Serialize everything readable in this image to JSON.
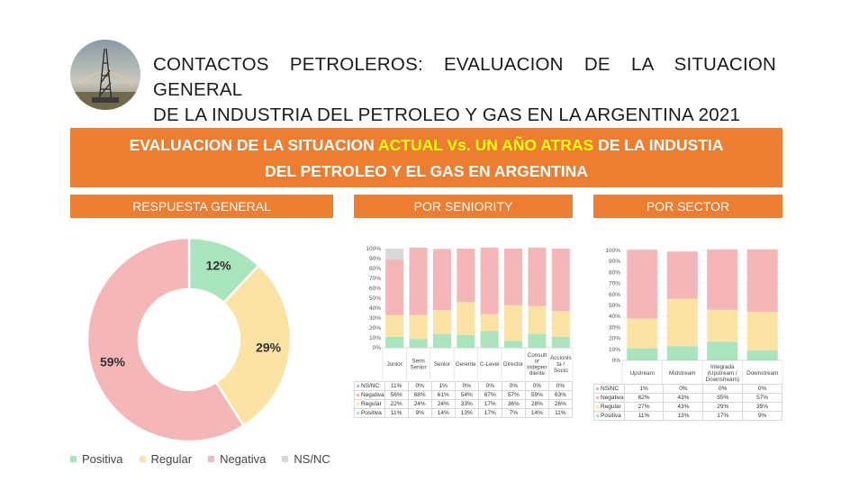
{
  "title": {
    "line1": "CONTACTOS PETROLEROS: EVALUACION DE LA SITUACION GENERAL",
    "line2": "DE LA INDUSTRIA DEL PETROLEO Y GAS EN LA ARGENTINA 2021"
  },
  "banner": {
    "part1": "EVALUACION DE LA SITUACION ",
    "highlight": "ACTUAL Vs. UN AÑO ATRAS",
    "part2": " DE LA INDUSTIA",
    "line2": "DEL PETROLEO Y EL GAS EN ARGENTINA"
  },
  "headers": {
    "general": "RESPUESTA GENERAL",
    "seniority": "POR SENIORITY",
    "sector": "POR SECTOR"
  },
  "colors": {
    "Positiva": "#a8e4bc",
    "Regular": "#fce3a4",
    "Negativa": "#f4b6b6",
    "NS/NC": "#d9d9d9",
    "orange": "#ed7d31",
    "highlight": "#ffff00"
  },
  "logo_icon": "oil-rig-photo",
  "legend": [
    "Positiva",
    "Regular",
    "Negativa",
    "NS/NC"
  ],
  "chart_data": [
    {
      "type": "pie",
      "subtype": "donut",
      "categories": [
        "Positiva",
        "Regular",
        "Negativa",
        "NS/NC"
      ],
      "values": [
        12,
        29,
        59,
        0
      ],
      "labels": [
        "12%",
        "29%",
        "59%",
        ""
      ],
      "legend_position": "bottom-left"
    },
    {
      "type": "bar",
      "stacked": true,
      "percent": true,
      "categories": [
        "Junior",
        "Semi Senior",
        "Senior",
        "Gerente",
        "C-Level",
        "Director",
        "Consult or indepen diente",
        "Accionis ta / Socio"
      ],
      "category_lines": [
        [
          "Junior"
        ],
        [
          "Semi",
          "Senior"
        ],
        [
          "Senior"
        ],
        [
          "Gerente"
        ],
        [
          "C-Level"
        ],
        [
          "Director"
        ],
        [
          "Consult",
          "or",
          "indepen",
          "diente"
        ],
        [
          "Accionis",
          "ta /",
          "Socio"
        ]
      ],
      "yticks": [
        "0%",
        "10%",
        "20%",
        "30%",
        "40%",
        "50%",
        "60%",
        "70%",
        "80%",
        "90%",
        "100%"
      ],
      "ylim": [
        0,
        100
      ],
      "series": [
        {
          "name": "Positiva",
          "values": [
            11,
            9,
            14,
            13,
            17,
            7,
            14,
            11
          ],
          "labels": [
            "11%",
            "9%",
            "14%",
            "13%",
            "17%",
            "7%",
            "14%",
            "11%"
          ]
        },
        {
          "name": "Regular",
          "values": [
            22,
            24,
            24,
            33,
            17,
            36,
            28,
            26
          ],
          "labels": [
            "22%",
            "24%",
            "24%",
            "33%",
            "17%",
            "36%",
            "28%",
            "26%"
          ]
        },
        {
          "name": "Negativa",
          "values": [
            56,
            68,
            61,
            54,
            67,
            57,
            59,
            63
          ],
          "labels": [
            "56%",
            "68%",
            "61%",
            "54%",
            "67%",
            "57%",
            "59%",
            "63%"
          ]
        },
        {
          "name": "NS/NC",
          "values": [
            11,
            0,
            1,
            0,
            0,
            0,
            0,
            0
          ],
          "labels": [
            "11%",
            "0%",
            "1%",
            "0%",
            "0%",
            "0%",
            "0%",
            "0%"
          ]
        }
      ],
      "table_row_order": [
        "NS/NC",
        "Negativa",
        "Regular",
        "Positiva"
      ]
    },
    {
      "type": "bar",
      "stacked": true,
      "percent": true,
      "categories": [
        "Upstream",
        "Midstream",
        "Integrada (Upstream / Downstream)",
        "Downstream"
      ],
      "category_lines": [
        [
          "Upstream"
        ],
        [
          "Midstream"
        ],
        [
          "Integrada",
          "(Upstream /",
          "Downstream)"
        ],
        [
          "Downstream"
        ]
      ],
      "yticks": [
        "0%",
        "10%",
        "20%",
        "30%",
        "40%",
        "50%",
        "60%",
        "70%",
        "80%",
        "90%",
        "100%"
      ],
      "ylim": [
        0,
        100
      ],
      "series": [
        {
          "name": "Positiva",
          "values": [
            11,
            13,
            17,
            9
          ],
          "labels": [
            "11%",
            "13%",
            "17%",
            "9%"
          ]
        },
        {
          "name": "Regular",
          "values": [
            27,
            43,
            29,
            35
          ],
          "labels": [
            "27%",
            "43%",
            "29%",
            "35%"
          ]
        },
        {
          "name": "Negativa",
          "values": [
            62,
            43,
            55,
            57
          ],
          "labels": [
            "62%",
            "43%",
            "55%",
            "57%"
          ]
        },
        {
          "name": "NS/NC",
          "values": [
            1,
            0,
            0,
            0
          ],
          "labels": [
            "1%",
            "0%",
            "0%",
            "0%"
          ]
        }
      ],
      "table_row_order": [
        "NS/NC",
        "Negativa",
        "Regular",
        "Positiva"
      ]
    }
  ]
}
